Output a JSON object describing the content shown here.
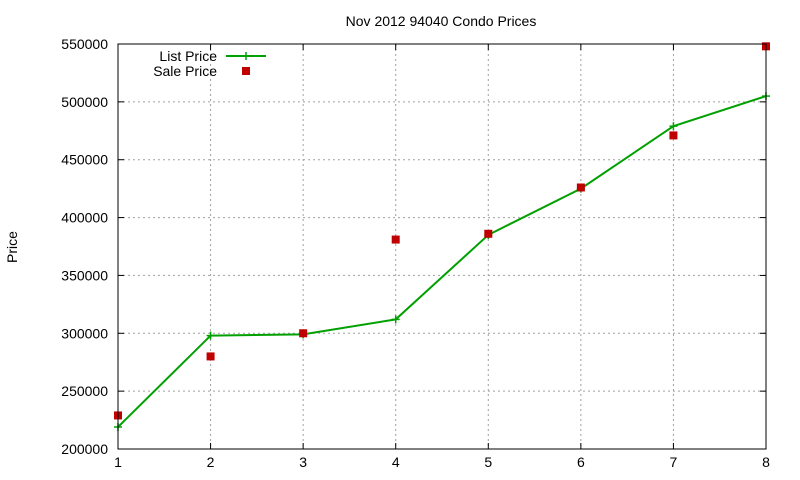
{
  "chart_data": {
    "type": "line",
    "title": "Nov 2012 94040 Condo Prices",
    "xlabel": "",
    "ylabel": "Price",
    "x": [
      1,
      2,
      3,
      4,
      5,
      6,
      7,
      8
    ],
    "xlim": [
      1,
      8
    ],
    "ylim": [
      200000,
      550000
    ],
    "x_ticks": [
      "1",
      "2",
      "3",
      "4",
      "5",
      "6",
      "7",
      "8"
    ],
    "y_ticks": [
      "200000",
      "250000",
      "300000",
      "350000",
      "400000",
      "450000",
      "500000",
      "550000"
    ],
    "grid": true,
    "legend_position": "top-left",
    "series": [
      {
        "name": "List Price",
        "style": "line-with-plus-markers",
        "color": "#00a000",
        "values": [
          219000,
          298000,
          299000,
          312000,
          385000,
          425000,
          479000,
          505000
        ]
      },
      {
        "name": "Sale Price",
        "style": "square-points",
        "color": "#c00000",
        "values": [
          229000,
          280000,
          300000,
          381000,
          386000,
          426000,
          471000,
          548000
        ]
      }
    ]
  }
}
